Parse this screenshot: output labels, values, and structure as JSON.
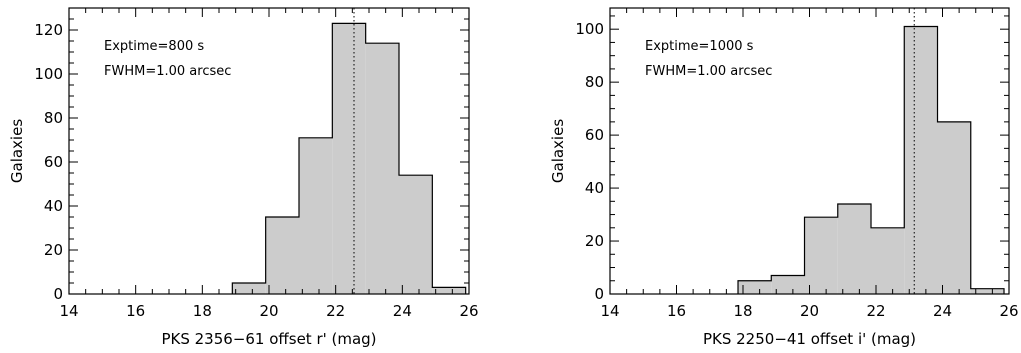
{
  "chart_data": [
    {
      "type": "bar",
      "xlabel": "PKS 2356−61 offset r' (mag)",
      "ylabel": "Galaxies",
      "xlim": [
        14,
        26
      ],
      "ylim": [
        0,
        130
      ],
      "xticks": [
        14,
        16,
        18,
        20,
        22,
        24,
        26
      ],
      "yticks": [
        0,
        20,
        40,
        60,
        80,
        100,
        120
      ],
      "bins": [
        {
          "x0": 18.9,
          "x1": 19.9,
          "value": 5
        },
        {
          "x0": 19.9,
          "x1": 20.9,
          "value": 35
        },
        {
          "x0": 20.9,
          "x1": 21.9,
          "value": 71
        },
        {
          "x0": 21.9,
          "x1": 22.9,
          "value": 123
        },
        {
          "x0": 22.9,
          "x1": 23.9,
          "value": 114
        },
        {
          "x0": 23.9,
          "x1": 24.9,
          "value": 54
        },
        {
          "x0": 24.9,
          "x1": 25.9,
          "value": 3
        }
      ],
      "vline": 22.55,
      "annotations": [
        "Exptime=800 s",
        "FWHM=1.00 arcsec"
      ],
      "fill_color": "#cccccc",
      "grid": false
    },
    {
      "type": "bar",
      "xlabel": "PKS 2250−41 offset i' (mag)",
      "ylabel": "Galaxies",
      "xlim": [
        14,
        26
      ],
      "ylim": [
        0,
        108
      ],
      "xticks": [
        14,
        16,
        18,
        20,
        22,
        24,
        26
      ],
      "yticks": [
        0,
        20,
        40,
        60,
        80,
        100
      ],
      "bins": [
        {
          "x0": 17.85,
          "x1": 18.85,
          "value": 5
        },
        {
          "x0": 18.85,
          "x1": 19.85,
          "value": 7
        },
        {
          "x0": 19.85,
          "x1": 20.85,
          "value": 29
        },
        {
          "x0": 20.85,
          "x1": 21.85,
          "value": 34
        },
        {
          "x0": 21.85,
          "x1": 22.85,
          "value": 25
        },
        {
          "x0": 22.85,
          "x1": 23.85,
          "value": 101
        },
        {
          "x0": 23.85,
          "x1": 24.85,
          "value": 65
        },
        {
          "x0": 24.85,
          "x1": 25.85,
          "value": 2
        }
      ],
      "vline": 23.15,
      "annotations": [
        "Exptime=1000 s",
        "FWHM=1.00 arcsec"
      ],
      "fill_color": "#cccccc",
      "grid": false
    }
  ]
}
